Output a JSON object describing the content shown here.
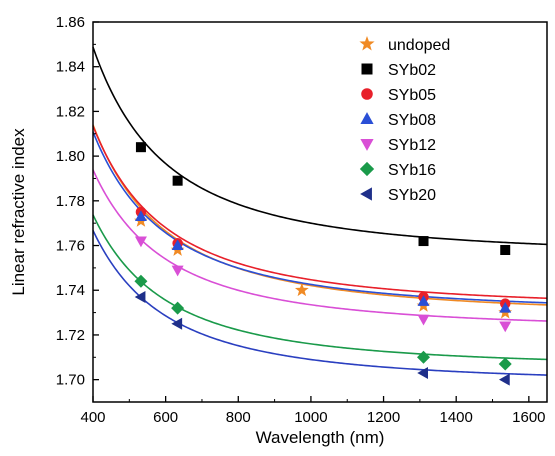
{
  "chart_data": {
    "type": "scatter",
    "xlabel": "Wavelength (nm)",
    "ylabel": "Linear refractive index",
    "xlim": [
      400,
      1650
    ],
    "ylim": [
      1.69,
      1.86
    ],
    "x_ticks": [
      400,
      600,
      800,
      1000,
      1200,
      1400,
      1600
    ],
    "x_tick_labels": [
      "400",
      "600",
      "800",
      "1000",
      "1200",
      "1400",
      "1600"
    ],
    "y_ticks": [
      1.7,
      1.72,
      1.74,
      1.76,
      1.78,
      1.8,
      1.82,
      1.84,
      1.86
    ],
    "y_tick_labels": [
      "1.70",
      "1.72",
      "1.74",
      "1.76",
      "1.78",
      "1.80",
      "1.82",
      "1.84",
      "1.86"
    ],
    "grid": false,
    "legend_position": "top-right",
    "fit_lines": true,
    "series": [
      {
        "name": "undoped",
        "marker": "star",
        "color": "#f08a24",
        "line_color": "#f08a24",
        "points": [
          [
            532,
            1.771
          ],
          [
            633,
            1.758
          ],
          [
            975,
            1.74
          ],
          [
            1310,
            1.733
          ],
          [
            1535,
            1.73
          ]
        ],
        "fit": {
          "a": 1.7284,
          "b": 13700
        }
      },
      {
        "name": "SYb02",
        "marker": "square",
        "color": "#000000",
        "line_color": "#000000",
        "points": [
          [
            532,
            1.804
          ],
          [
            633,
            1.789
          ],
          [
            1310,
            1.762
          ],
          [
            1535,
            1.758
          ]
        ],
        "fit": {
          "a": 1.755,
          "b": 15000
        }
      },
      {
        "name": "SYb05",
        "marker": "circle",
        "color": "#e8202a",
        "line_color": "#e8202a",
        "points": [
          [
            532,
            1.775
          ],
          [
            633,
            1.761
          ],
          [
            1310,
            1.737
          ],
          [
            1535,
            1.734
          ]
        ],
        "fit": {
          "a": 1.7316,
          "b": 13100
        }
      },
      {
        "name": "SYb08",
        "marker": "triangle-up",
        "color": "#2a4fd6",
        "line_color": "#2a4fd6",
        "points": [
          [
            532,
            1.773
          ],
          [
            633,
            1.76
          ],
          [
            1310,
            1.735
          ],
          [
            1535,
            1.732
          ]
        ],
        "fit": {
          "a": 1.7296,
          "b": 13000
        }
      },
      {
        "name": "SYb12",
        "marker": "triangle-down",
        "color": "#d94fd6",
        "line_color": "#d94fd6",
        "points": [
          [
            532,
            1.762
          ],
          [
            633,
            1.749
          ],
          [
            1310,
            1.727
          ],
          [
            1535,
            1.724
          ]
        ],
        "fit": {
          "a": 1.722,
          "b": 11500
        }
      },
      {
        "name": "SYb16",
        "marker": "diamond",
        "color": "#1a9a4a",
        "line_color": "#1a9a4a",
        "points": [
          [
            532,
            1.744
          ],
          [
            633,
            1.732
          ],
          [
            1310,
            1.71
          ],
          [
            1535,
            1.707
          ]
        ],
        "fit": {
          "a": 1.705,
          "b": 11000
        }
      },
      {
        "name": "SYb20",
        "marker": "triangle-left",
        "color": "#1f2f8a",
        "line_color": "#2a3fc0",
        "points": [
          [
            532,
            1.737
          ],
          [
            633,
            1.725
          ],
          [
            1310,
            1.703
          ],
          [
            1535,
            1.7
          ]
        ],
        "fit": {
          "a": 1.698,
          "b": 11000
        }
      }
    ]
  }
}
